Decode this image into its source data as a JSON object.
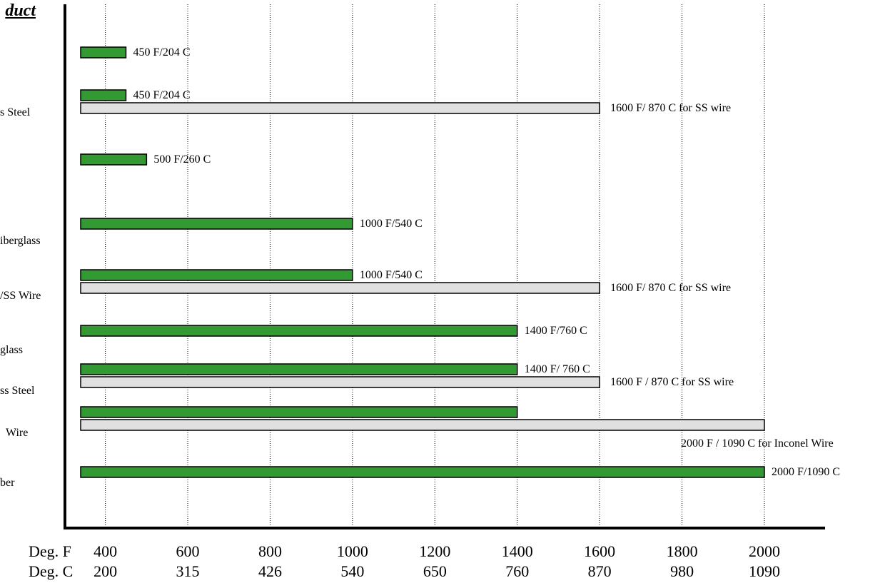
{
  "title": "duct",
  "scale_labels": {
    "f": "Deg. F",
    "c": "Deg. C"
  },
  "colors": {
    "green": "#339933",
    "grey": "#e0e0e0",
    "outline": "#000000",
    "grid": "#000000"
  },
  "categories": [
    {
      "label": "",
      "bars": [
        {
          "kind": "green",
          "value": 450,
          "label": "450 F/204 C"
        }
      ]
    },
    {
      "label": "s Steel",
      "bars": [
        {
          "kind": "green",
          "value": 450,
          "label": "450 F/204 C"
        },
        {
          "kind": "grey",
          "value": 1600,
          "label": "1600 F/ 870 C for SS wire"
        }
      ]
    },
    {
      "label": "",
      "bars": [
        {
          "kind": "green",
          "value": 500,
          "label": "500 F/260 C"
        }
      ]
    },
    {
      "label": "iberglass",
      "bars": [
        {
          "kind": "green",
          "value": 1000,
          "label": "1000 F/540 C"
        }
      ]
    },
    {
      "label": "/SS Wire",
      "bars": [
        {
          "kind": "green",
          "value": 1000,
          "label": "1000 F/540 C"
        },
        {
          "kind": "grey",
          "value": 1600,
          "label": "1600 F/ 870 C for SS wire"
        }
      ]
    },
    {
      "label": "glass",
      "bars": [
        {
          "kind": "green",
          "value": 1400,
          "label": "1400 F/760 C"
        }
      ]
    },
    {
      "label": "ss Steel",
      "bars": [
        {
          "kind": "green",
          "value": 1400,
          "label": "1400 F/ 760 C"
        },
        {
          "kind": "grey",
          "value": 1600,
          "label": "1600 F / 870 C for SS wire"
        }
      ]
    },
    {
      "label": "Wire",
      "bars": [
        {
          "kind": "green",
          "value": 1400,
          "label": ""
        },
        {
          "kind": "grey",
          "value": 2000,
          "label": "2000 F / 1090 C for Inconel Wire"
        }
      ]
    },
    {
      "label": "ber",
      "bars": [
        {
          "kind": "green",
          "value": 2000,
          "label": "2000 F/1090 C"
        }
      ]
    }
  ],
  "chart_data": {
    "type": "bar",
    "orientation": "horizontal",
    "title": "duct",
    "xlabel": "",
    "ylabel": "",
    "xlim": [
      340,
      2000
    ],
    "x_ticks_f": [
      "400",
      "600",
      "800",
      "1000",
      "1200",
      "1400",
      "1600",
      "1800",
      "2000"
    ],
    "x_ticks_c": [
      "200",
      "315",
      "426",
      "540",
      "650",
      "760",
      "870",
      "980",
      "1090"
    ],
    "grid": "vertical dotted",
    "categories": [
      "",
      "s Steel",
      "",
      "iberglass",
      "/SS Wire",
      "glass",
      "ss Steel",
      "Wire",
      "ber"
    ],
    "series": [
      {
        "values": [
          450,
          450,
          500,
          1000,
          1000,
          1400,
          1400,
          1400,
          2000
        ]
      },
      {
        "values": [
          null,
          1600,
          null,
          null,
          1600,
          null,
          1600,
          2000,
          null
        ]
      }
    ]
  }
}
